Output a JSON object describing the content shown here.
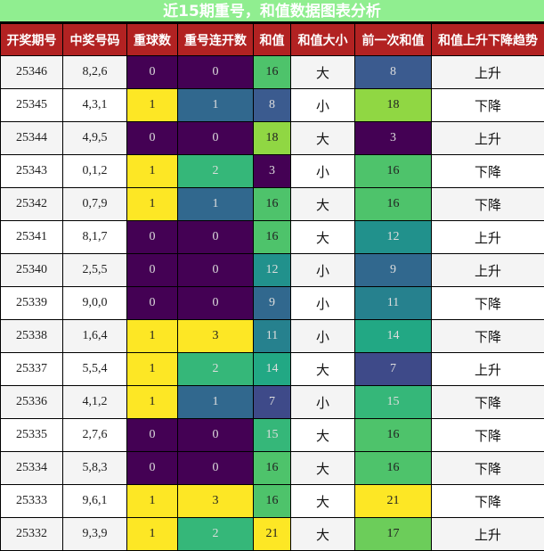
{
  "title": "近15期重号，和值数据图表分析",
  "headers": [
    "开奖期号",
    "中奖号码",
    "重球数",
    "重号连开数",
    "和值",
    "和值大小",
    "前一次和值",
    "和值上升下降趋势"
  ],
  "rows": [
    {
      "issue": "25346",
      "numbers": "8,2,6",
      "repeat": "0",
      "repeat_streak": "0",
      "sum": "16",
      "size": "大",
      "prev_sum": "8",
      "trend": "上升"
    },
    {
      "issue": "25345",
      "numbers": "4,3,1",
      "repeat": "1",
      "repeat_streak": "1",
      "sum": "8",
      "size": "小",
      "prev_sum": "18",
      "trend": "下降"
    },
    {
      "issue": "25344",
      "numbers": "4,9,5",
      "repeat": "0",
      "repeat_streak": "0",
      "sum": "18",
      "size": "大",
      "prev_sum": "3",
      "trend": "上升"
    },
    {
      "issue": "25343",
      "numbers": "0,1,2",
      "repeat": "1",
      "repeat_streak": "2",
      "sum": "3",
      "size": "小",
      "prev_sum": "16",
      "trend": "下降"
    },
    {
      "issue": "25342",
      "numbers": "0,7,9",
      "repeat": "1",
      "repeat_streak": "1",
      "sum": "16",
      "size": "大",
      "prev_sum": "16",
      "trend": "下降"
    },
    {
      "issue": "25341",
      "numbers": "8,1,7",
      "repeat": "0",
      "repeat_streak": "0",
      "sum": "16",
      "size": "大",
      "prev_sum": "12",
      "trend": "上升"
    },
    {
      "issue": "25340",
      "numbers": "2,5,5",
      "repeat": "0",
      "repeat_streak": "0",
      "sum": "12",
      "size": "小",
      "prev_sum": "9",
      "trend": "上升"
    },
    {
      "issue": "25339",
      "numbers": "9,0,0",
      "repeat": "0",
      "repeat_streak": "0",
      "sum": "9",
      "size": "小",
      "prev_sum": "11",
      "trend": "下降"
    },
    {
      "issue": "25338",
      "numbers": "1,6,4",
      "repeat": "1",
      "repeat_streak": "3",
      "sum": "11",
      "size": "小",
      "prev_sum": "14",
      "trend": "下降"
    },
    {
      "issue": "25337",
      "numbers": "5,5,4",
      "repeat": "1",
      "repeat_streak": "2",
      "sum": "14",
      "size": "大",
      "prev_sum": "7",
      "trend": "上升"
    },
    {
      "issue": "25336",
      "numbers": "4,1,2",
      "repeat": "1",
      "repeat_streak": "1",
      "sum": "7",
      "size": "小",
      "prev_sum": "15",
      "trend": "下降"
    },
    {
      "issue": "25335",
      "numbers": "2,7,6",
      "repeat": "0",
      "repeat_streak": "0",
      "sum": "15",
      "size": "大",
      "prev_sum": "16",
      "trend": "下降"
    },
    {
      "issue": "25334",
      "numbers": "5,8,3",
      "repeat": "0",
      "repeat_streak": "0",
      "sum": "16",
      "size": "大",
      "prev_sum": "16",
      "trend": "下降"
    },
    {
      "issue": "25333",
      "numbers": "9,6,1",
      "repeat": "1",
      "repeat_streak": "3",
      "sum": "16",
      "size": "大",
      "prev_sum": "21",
      "trend": "下降"
    },
    {
      "issue": "25332",
      "numbers": "9,3,9",
      "repeat": "1",
      "repeat_streak": "2",
      "sum": "21",
      "size": "大",
      "prev_sum": "17",
      "trend": "上升"
    }
  ],
  "colors": {
    "title_bg": "#90ee90",
    "header_bg": "#b22222",
    "repeat": {
      "0": "#440154",
      "1": "#fde725"
    },
    "repeat_streak": {
      "0": "#440154",
      "1": "#31688e",
      "2": "#35b779",
      "3": "#fde725"
    },
    "sum": {
      "3": "#440154",
      "7": "#3e4a89",
      "8": "#3b5b8f",
      "9": "#31688e",
      "11": "#26818e",
      "12": "#21918c",
      "14": "#22a884",
      "15": "#35b779",
      "16": "#4ec36b",
      "17": "#6ccd5a",
      "18": "#90d743",
      "21": "#fde725"
    }
  },
  "chart_data": {
    "type": "table",
    "title": "近15期重号，和值数据图表分析",
    "columns": [
      "开奖期号",
      "中奖号码",
      "重球数",
      "重号连开数",
      "和值",
      "和值大小",
      "前一次和值",
      "和值上升下降趋势"
    ],
    "rows": [
      [
        "25346",
        "8,2,6",
        0,
        0,
        16,
        "大",
        8,
        "上升"
      ],
      [
        "25345",
        "4,3,1",
        1,
        1,
        8,
        "小",
        18,
        "下降"
      ],
      [
        "25344",
        "4,9,5",
        0,
        0,
        18,
        "大",
        3,
        "上升"
      ],
      [
        "25343",
        "0,1,2",
        1,
        2,
        3,
        "小",
        16,
        "下降"
      ],
      [
        "25342",
        "0,7,9",
        1,
        1,
        16,
        "大",
        16,
        "下降"
      ],
      [
        "25341",
        "8,1,7",
        0,
        0,
        16,
        "大",
        12,
        "上升"
      ],
      [
        "25340",
        "2,5,5",
        0,
        0,
        12,
        "小",
        9,
        "上升"
      ],
      [
        "25339",
        "9,0,0",
        0,
        0,
        9,
        "小",
        11,
        "下降"
      ],
      [
        "25338",
        "1,6,4",
        1,
        3,
        11,
        "小",
        14,
        "下降"
      ],
      [
        "25337",
        "5,5,4",
        1,
        2,
        14,
        "大",
        7,
        "上升"
      ],
      [
        "25336",
        "4,1,2",
        1,
        1,
        7,
        "小",
        15,
        "下降"
      ],
      [
        "25335",
        "2,7,6",
        0,
        0,
        15,
        "大",
        16,
        "下降"
      ],
      [
        "25334",
        "5,8,3",
        0,
        0,
        16,
        "大",
        16,
        "下降"
      ],
      [
        "25333",
        "9,6,1",
        1,
        3,
        16,
        "大",
        21,
        "下降"
      ],
      [
        "25332",
        "9,3,9",
        1,
        2,
        21,
        "大",
        17,
        "上升"
      ]
    ],
    "colormap": "viridis"
  }
}
